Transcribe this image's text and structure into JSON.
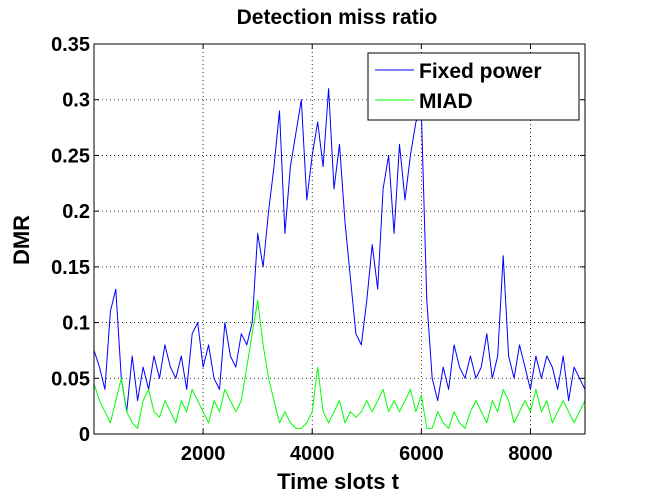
{
  "chart_data": {
    "type": "line",
    "title": "Detection miss ratio",
    "xlabel": "Time slots t",
    "ylabel": "DMR",
    "xlim": [
      0,
      9000
    ],
    "ylim": [
      0,
      0.35
    ],
    "xticks": [
      2000,
      4000,
      6000,
      8000
    ],
    "xtick_labels": [
      "2000",
      "4000",
      "6000",
      "8000"
    ],
    "yticks": [
      0,
      0.05,
      0.1,
      0.15,
      0.2,
      0.25,
      0.3,
      0.35
    ],
    "ytick_labels": [
      "0",
      "0.05",
      "0.1",
      "0.15",
      "0.2",
      "0.25",
      "0.3",
      "0.35"
    ],
    "grid": true,
    "legend_position": "top-right",
    "series": [
      {
        "name": "Fixed power",
        "color": "#0000ff",
        "x": [
          0,
          100,
          200,
          300,
          400,
          500,
          600,
          700,
          800,
          900,
          1000,
          1100,
          1200,
          1300,
          1400,
          1500,
          1600,
          1700,
          1800,
          1900,
          2000,
          2100,
          2200,
          2300,
          2400,
          2500,
          2600,
          2700,
          2800,
          2900,
          3000,
          3100,
          3200,
          3300,
          3400,
          3500,
          3600,
          3700,
          3800,
          3900,
          4000,
          4100,
          4200,
          4300,
          4400,
          4500,
          4600,
          4700,
          4800,
          4900,
          5000,
          5100,
          5200,
          5300,
          5400,
          5500,
          5600,
          5700,
          5800,
          5900,
          6000,
          6100,
          6200,
          6300,
          6400,
          6500,
          6600,
          6700,
          6800,
          6900,
          7000,
          7100,
          7200,
          7300,
          7400,
          7500,
          7600,
          7700,
          7800,
          7900,
          8000,
          8100,
          8200,
          8300,
          8400,
          8500,
          8600,
          8700,
          8800,
          8900,
          9000
        ],
        "y": [
          0.075,
          0.06,
          0.04,
          0.11,
          0.13,
          0.05,
          0.02,
          0.07,
          0.03,
          0.06,
          0.04,
          0.07,
          0.05,
          0.08,
          0.06,
          0.05,
          0.07,
          0.04,
          0.09,
          0.1,
          0.06,
          0.08,
          0.05,
          0.04,
          0.1,
          0.07,
          0.06,
          0.09,
          0.08,
          0.1,
          0.18,
          0.15,
          0.2,
          0.24,
          0.29,
          0.18,
          0.24,
          0.27,
          0.3,
          0.21,
          0.25,
          0.28,
          0.24,
          0.31,
          0.22,
          0.26,
          0.19,
          0.14,
          0.09,
          0.08,
          0.12,
          0.17,
          0.13,
          0.22,
          0.25,
          0.18,
          0.26,
          0.21,
          0.25,
          0.28,
          0.29,
          0.12,
          0.05,
          0.03,
          0.06,
          0.04,
          0.08,
          0.06,
          0.05,
          0.07,
          0.05,
          0.06,
          0.09,
          0.05,
          0.07,
          0.16,
          0.07,
          0.05,
          0.08,
          0.06,
          0.04,
          0.07,
          0.05,
          0.07,
          0.06,
          0.04,
          0.07,
          0.03,
          0.06,
          0.05,
          0.04
        ]
      },
      {
        "name": "MIAD",
        "color": "#00ff00",
        "x": [
          0,
          100,
          200,
          300,
          400,
          500,
          600,
          700,
          800,
          900,
          1000,
          1100,
          1200,
          1300,
          1400,
          1500,
          1600,
          1700,
          1800,
          1900,
          2000,
          2100,
          2200,
          2300,
          2400,
          2500,
          2600,
          2700,
          2800,
          2900,
          3000,
          3100,
          3200,
          3300,
          3400,
          3500,
          3600,
          3700,
          3800,
          3900,
          4000,
          4100,
          4200,
          4300,
          4400,
          4500,
          4600,
          4700,
          4800,
          4900,
          5000,
          5100,
          5200,
          5300,
          5400,
          5500,
          5600,
          5700,
          5800,
          5900,
          6000,
          6100,
          6200,
          6300,
          6400,
          6500,
          6600,
          6700,
          6800,
          6900,
          7000,
          7100,
          7200,
          7300,
          7400,
          7500,
          7600,
          7700,
          7800,
          7900,
          8000,
          8100,
          8200,
          8300,
          8400,
          8500,
          8600,
          8700,
          8800,
          8900,
          9000
        ],
        "y": [
          0.045,
          0.03,
          0.02,
          0.01,
          0.03,
          0.05,
          0.02,
          0.01,
          0.005,
          0.03,
          0.04,
          0.02,
          0.015,
          0.03,
          0.02,
          0.01,
          0.03,
          0.02,
          0.04,
          0.03,
          0.02,
          0.01,
          0.03,
          0.02,
          0.04,
          0.03,
          0.02,
          0.03,
          0.06,
          0.09,
          0.12,
          0.08,
          0.05,
          0.03,
          0.01,
          0.02,
          0.01,
          0.005,
          0.005,
          0.01,
          0.02,
          0.06,
          0.02,
          0.01,
          0.02,
          0.03,
          0.01,
          0.02,
          0.015,
          0.02,
          0.03,
          0.02,
          0.03,
          0.04,
          0.02,
          0.03,
          0.02,
          0.03,
          0.04,
          0.02,
          0.035,
          0.005,
          0.005,
          0.02,
          0.01,
          0.005,
          0.02,
          0.01,
          0.005,
          0.02,
          0.03,
          0.02,
          0.01,
          0.03,
          0.02,
          0.04,
          0.03,
          0.01,
          0.02,
          0.03,
          0.02,
          0.04,
          0.02,
          0.03,
          0.01,
          0.02,
          0.03,
          0.02,
          0.01,
          0.02,
          0.03
        ]
      }
    ]
  }
}
